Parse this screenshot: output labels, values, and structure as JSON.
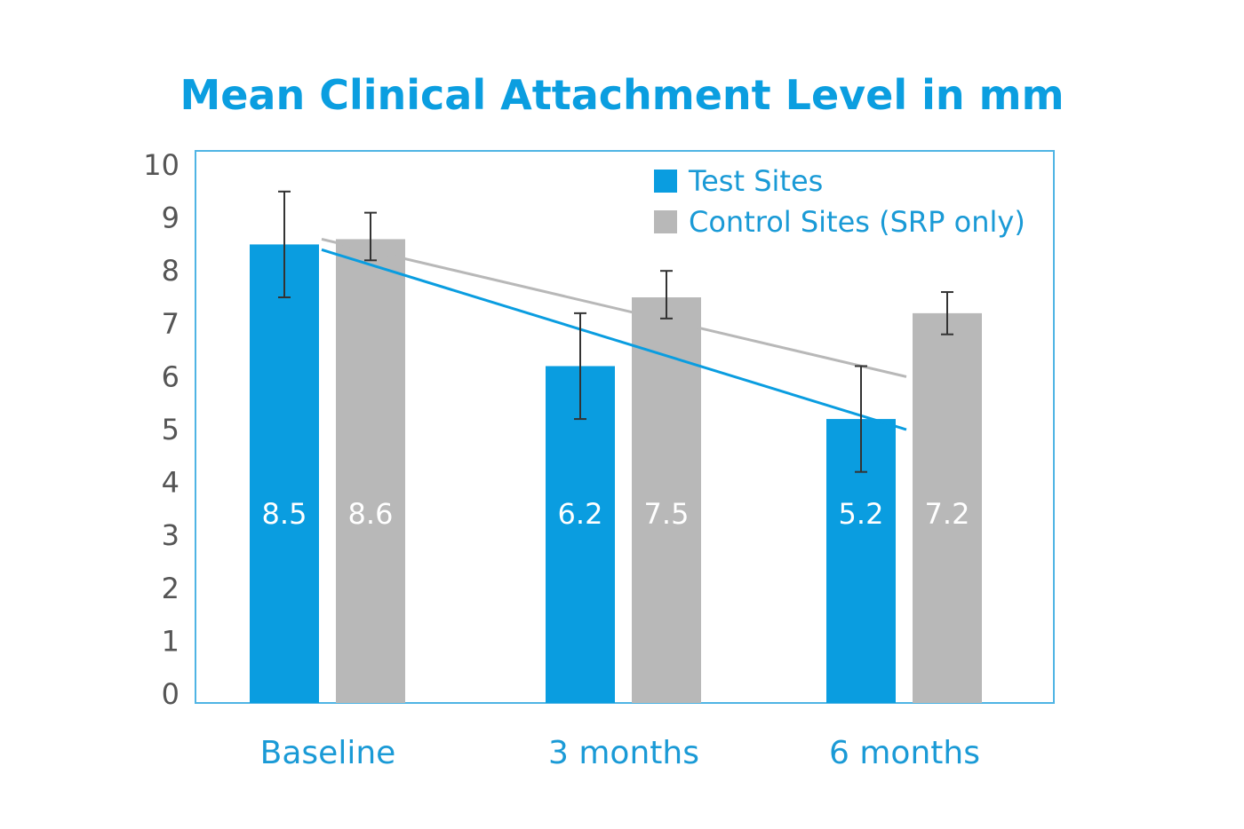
{
  "chart_data": {
    "type": "bar",
    "title": "Mean Clinical Attachment Level in mm",
    "xlabel": "",
    "ylabel": "",
    "categories": [
      "Baseline",
      "3 months",
      "6 months"
    ],
    "ylim": [
      0,
      10
    ],
    "yticks": [
      "0",
      "1",
      "2",
      "3",
      "4",
      "5",
      "6",
      "7",
      "8",
      "9",
      "10"
    ],
    "grid": false,
    "legend_position": "top-right",
    "series": [
      {
        "name": "Test Sites",
        "color": "#0a9de0",
        "values": [
          8.5,
          6.2,
          5.2
        ],
        "labels": [
          "8.5",
          "6.2",
          "5.2"
        ],
        "error": [
          [
            7.5,
            9.5
          ],
          [
            5.2,
            7.2
          ],
          [
            4.2,
            6.2
          ]
        ],
        "trendline": [
          8.4,
          5.0
        ]
      },
      {
        "name": "Control Sites (SRP only)",
        "color": "#b8b8b8",
        "values": [
          8.6,
          7.5,
          7.2
        ],
        "labels": [
          "8.6",
          "7.5",
          "7.2"
        ],
        "error": [
          [
            8.2,
            9.1
          ],
          [
            7.1,
            8.0
          ],
          [
            6.8,
            7.6
          ]
        ],
        "trendline": [
          8.6,
          6.0
        ]
      }
    ],
    "colors": {
      "title": "#0b9ee0",
      "frame": "#4fb4e4",
      "axis_text": "#555555",
      "category_text": "#1a9ad6"
    }
  }
}
